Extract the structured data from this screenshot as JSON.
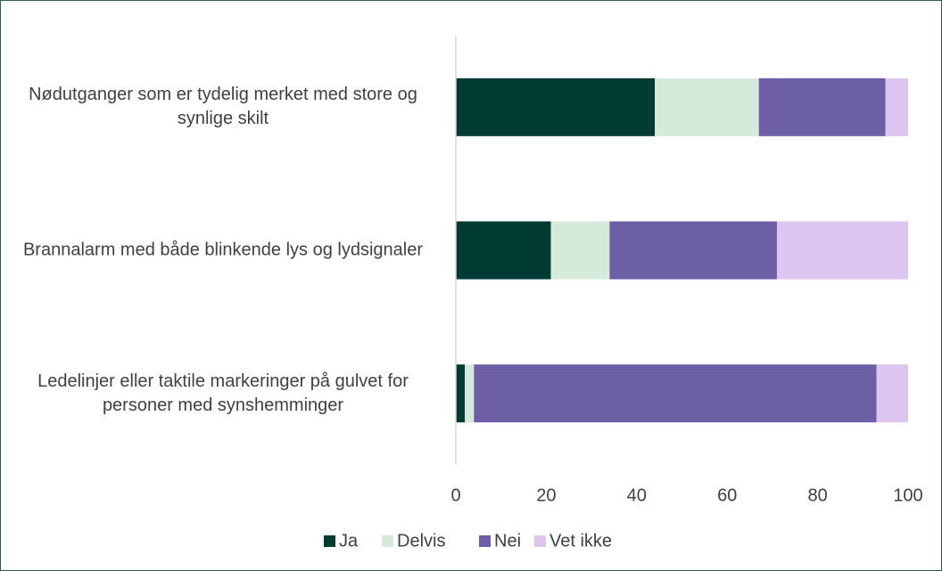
{
  "chart_data": {
    "type": "stacked-barh",
    "categories": [
      "Nødutganger som er tydelig merket med store og synlige skilt",
      "Brannalarm med både blinkende lys og lydsignaler",
      "Ledelinjer eller taktile markeringer på gulvet for personer med synshemminger"
    ],
    "series": [
      {
        "name": "Ja",
        "color": "#003c32",
        "values": [
          44,
          21,
          2
        ]
      },
      {
        "name": "Delvis",
        "color": "#d5eadb",
        "values": [
          23,
          13,
          2
        ]
      },
      {
        "name": "Nei",
        "color": "#6e5ea5",
        "values": [
          28,
          37,
          89
        ]
      },
      {
        "name": "Vet ikke",
        "color": "#dcc6f0",
        "values": [
          5,
          29,
          7
        ]
      }
    ],
    "xlim": [
      0,
      100
    ],
    "xticks": [
      0,
      20,
      40,
      60,
      80,
      100
    ],
    "legend": "bottom"
  }
}
